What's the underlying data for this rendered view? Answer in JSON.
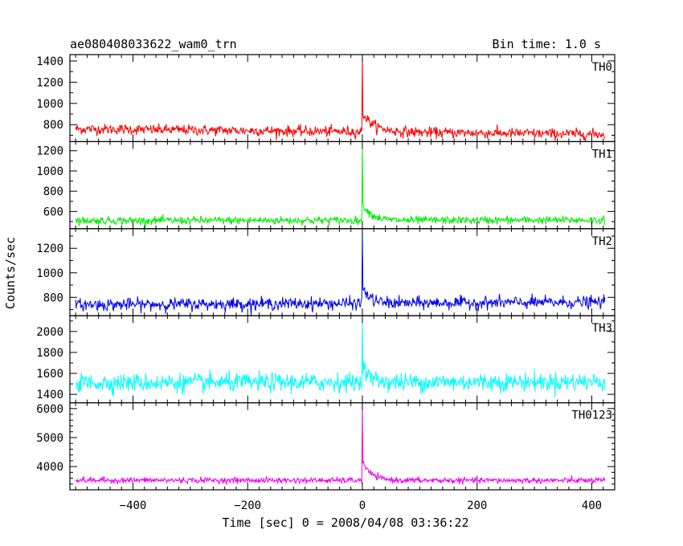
{
  "header": {
    "title": "ae080408033622_wam0_trn",
    "bin_time": "Bin time: 1.0 s"
  },
  "chart_data": {
    "type": "line",
    "xlabel": "Time [sec] 0 = 2008/04/08 03:36:22",
    "ylabel": "Counts/sec",
    "xlim": [
      -510,
      440
    ],
    "x_ticks": [
      -400,
      -200,
      0,
      200,
      400
    ],
    "bin_seconds": 1.0,
    "x_range": [
      -500,
      423
    ],
    "grid": false,
    "panels": [
      {
        "name": "TH0",
        "color": "#ff0000",
        "ylim": [
          640,
          1460
        ],
        "y_ticks": [
          800,
          1000,
          1200,
          1400
        ],
        "baseline_start": 760,
        "baseline_end": 710,
        "noise": 45,
        "peak": 1440,
        "decay_amplitude": 180,
        "decay_tau": 20
      },
      {
        "name": "TH1",
        "color": "#00ee00",
        "ylim": [
          430,
          1290
        ],
        "y_ticks": [
          600,
          800,
          1000,
          1200
        ],
        "baseline_start": 510,
        "baseline_end": 515,
        "noise": 35,
        "peak": 1260,
        "decay_amplitude": 170,
        "decay_tau": 15
      },
      {
        "name": "TH2",
        "color": "#0000ee",
        "ylim": [
          650,
          1360
        ],
        "y_ticks": [
          800,
          1000,
          1200
        ],
        "baseline_start": 740,
        "baseline_end": 760,
        "noise": 45,
        "peak": 1340,
        "decay_amplitude": 140,
        "decay_tau": 12
      },
      {
        "name": "TH3",
        "color": "#00ffff",
        "ylim": [
          1320,
          2150
        ],
        "y_ticks": [
          1400,
          1600,
          1800,
          2000
        ],
        "baseline_start": 1510,
        "baseline_end": 1520,
        "noise": 80,
        "peak": 2120,
        "decay_amplitude": 160,
        "decay_tau": 12
      },
      {
        "name": "TH0123",
        "color": "#ee00ee",
        "ylim": [
          3200,
          6200
        ],
        "y_ticks": [
          4000,
          5000,
          6000
        ],
        "baseline_start": 3530,
        "baseline_end": 3520,
        "noise": 90,
        "peak": 6150,
        "decay_amplitude": 650,
        "decay_tau": 15
      }
    ]
  }
}
